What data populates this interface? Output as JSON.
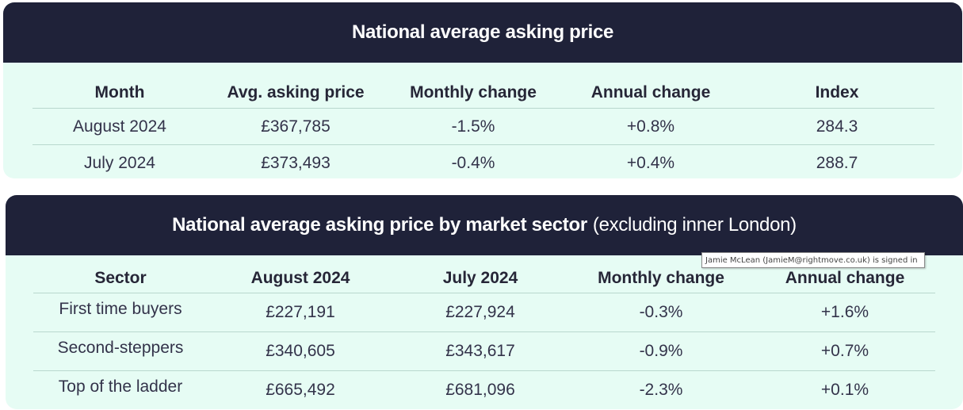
{
  "national": {
    "title": "National average asking price",
    "columns": [
      "Month",
      "Avg. asking price",
      "Monthly change",
      "Annual change",
      "Index"
    ],
    "rows": [
      [
        "August 2024",
        "£367,785",
        "-1.5%",
        "+0.8%",
        "284.3"
      ],
      [
        "July 2024",
        "£373,493",
        "-0.4%",
        "+0.4%",
        "288.7"
      ]
    ]
  },
  "sector": {
    "title": "National average asking price by market sector",
    "subtitle": "(excluding inner London)",
    "columns": [
      "Sector",
      "August 2024",
      "July 2024",
      "Monthly change",
      "Annual change"
    ],
    "rows": [
      [
        "First time buyers",
        "£227,191",
        "£227,924",
        "-0.3%",
        "+1.6%"
      ],
      [
        "Second-steppers",
        "£340,605",
        "£343,617",
        "-0.9%",
        "+0.7%"
      ],
      [
        "Top of the ladder",
        "£665,492",
        "£681,096",
        "-2.3%",
        "+0.1%"
      ]
    ]
  },
  "tooltip": {
    "text": "Jamie McLean (JamieM@rightmove.co.uk) is signed in"
  },
  "colors": {
    "header_bg": "#1f2239",
    "card_bg": "#e6fcf4",
    "divider": "#b9d8ce"
  }
}
